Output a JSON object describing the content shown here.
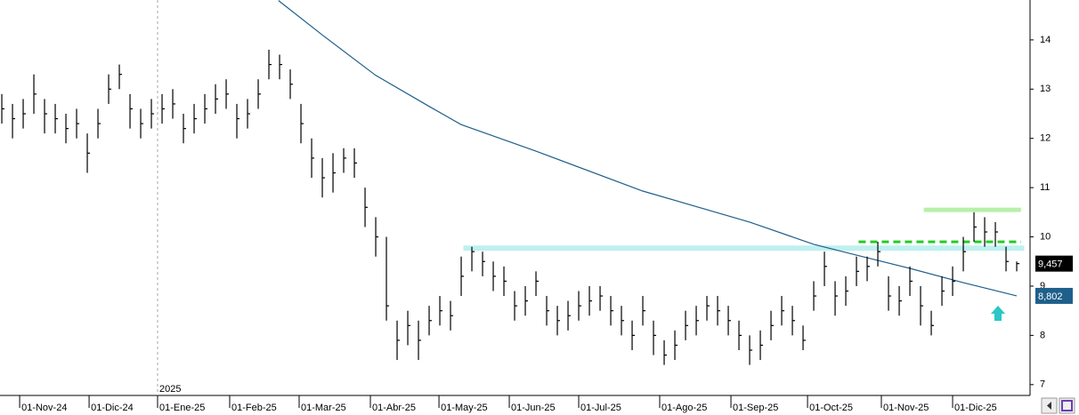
{
  "chart_data": {
    "type": "ohlc",
    "xlim": [
      -0.17,
      96.08
    ],
    "ylim": [
      6.78,
      14.81
    ],
    "yticks": [
      7,
      8,
      9,
      10,
      11,
      12,
      13,
      14
    ],
    "xticks": [
      {
        "value": 1.67,
        "label": "01-Nov-24"
      },
      {
        "value": 8.17,
        "label": "01-Dic-24"
      },
      {
        "value": 14.58,
        "label": "01-Ene-25"
      },
      {
        "value": 21.33,
        "label": "01-Feb-25"
      },
      {
        "value": 27.83,
        "label": "01-Mar-25"
      },
      {
        "value": 34.5,
        "label": "01-Abr-25"
      },
      {
        "value": 40.92,
        "label": "01-May-25"
      },
      {
        "value": 47.5,
        "label": "01-Jun-25"
      },
      {
        "value": 54,
        "label": "01-Jul-25"
      },
      {
        "value": 61.58,
        "label": "01-Ago-25"
      },
      {
        "value": 68.25,
        "label": "01-Sep-25"
      },
      {
        "value": 75.42,
        "label": "01-Oct-25"
      },
      {
        "value": 82.33,
        "label": "01-Nov-25"
      },
      {
        "value": 89,
        "label": "01-Dic-25"
      }
    ],
    "year_marker": {
      "value": 14.58,
      "label": "2025"
    },
    "bars": {
      "color": "#000000",
      "high": [
        12.9,
        12.7,
        12.8,
        13.3,
        12.8,
        12.7,
        12.5,
        12.6,
        12.1,
        12.6,
        13.3,
        13.5,
        12.9,
        12.6,
        12.8,
        12.9,
        13.0,
        12.5,
        12.7,
        12.9,
        13.1,
        13.2,
        12.7,
        12.8,
        13.2,
        13.8,
        13.7,
        13.4,
        12.7,
        12.0,
        11.6,
        11.7,
        11.8,
        11.8,
        11.0,
        10.4,
        10.0,
        8.3,
        8.5,
        8.3,
        8.6,
        8.8,
        8.7,
        9.6,
        9.8,
        9.7,
        9.5,
        9.4,
        8.9,
        9.0,
        9.3,
        8.8,
        8.6,
        8.7,
        8.9,
        9.0,
        9.0,
        8.8,
        8.6,
        8.3,
        8.8,
        8.3,
        7.9,
        8.1,
        8.5,
        8.6,
        8.8,
        8.8,
        8.6,
        8.3,
        8.0,
        8.1,
        8.5,
        8.8,
        8.6,
        8.2,
        9.1,
        9.7,
        9.1,
        9.2,
        9.6,
        9.6,
        9.9,
        9.2,
        9.0,
        9.4,
        9.0,
        8.5,
        9.2,
        9.4,
        10.0,
        10.5,
        10.4,
        10.3,
        9.8,
        9.5
      ],
      "low": [
        12.3,
        12.0,
        12.2,
        12.5,
        12.1,
        12.1,
        11.9,
        12.0,
        11.3,
        12.0,
        12.7,
        13.0,
        12.2,
        12.0,
        12.2,
        12.3,
        12.4,
        11.9,
        12.1,
        12.3,
        12.5,
        12.6,
        12.0,
        12.2,
        12.6,
        13.2,
        13.2,
        12.8,
        11.9,
        11.2,
        10.8,
        10.9,
        11.3,
        11.2,
        10.2,
        9.6,
        8.3,
        7.5,
        7.8,
        7.5,
        8.0,
        8.2,
        8.1,
        8.8,
        9.3,
        9.2,
        8.9,
        8.8,
        8.3,
        8.4,
        8.8,
        8.2,
        8.0,
        8.1,
        8.3,
        8.4,
        8.5,
        8.2,
        8.0,
        7.7,
        8.2,
        7.6,
        7.4,
        7.5,
        7.9,
        8.0,
        8.3,
        8.2,
        8.0,
        7.7,
        7.4,
        7.5,
        7.9,
        8.2,
        8.0,
        7.7,
        8.5,
        9.0,
        8.4,
        8.6,
        9.0,
        9.1,
        9.4,
        8.5,
        8.4,
        8.8,
        8.2,
        8.0,
        8.6,
        8.8,
        9.3,
        9.9,
        9.8,
        9.8,
        9.3,
        9.3
      ],
      "close": [
        12.6,
        12.4,
        12.5,
        12.9,
        12.5,
        12.4,
        12.2,
        12.3,
        11.7,
        12.3,
        13.0,
        13.3,
        12.6,
        12.3,
        12.5,
        12.6,
        12.7,
        12.2,
        12.4,
        12.6,
        12.8,
        12.9,
        12.4,
        12.5,
        12.9,
        13.5,
        13.5,
        13.1,
        12.3,
        11.6,
        11.2,
        11.3,
        11.6,
        11.5,
        10.6,
        10.0,
        8.6,
        7.9,
        8.2,
        7.9,
        8.3,
        8.5,
        8.4,
        9.2,
        9.7,
        9.5,
        9.2,
        9.1,
        8.6,
        8.7,
        9.1,
        8.5,
        8.3,
        8.4,
        8.6,
        8.7,
        8.8,
        8.5,
        8.3,
        8.0,
        8.5,
        8.0,
        7.6,
        7.8,
        8.2,
        8.3,
        8.6,
        8.5,
        8.3,
        8.0,
        7.7,
        7.8,
        8.2,
        8.5,
        8.3,
        7.9,
        8.8,
        9.4,
        8.8,
        8.9,
        9.3,
        9.4,
        9.7,
        8.8,
        8.7,
        9.1,
        8.6,
        8.2,
        8.9,
        9.1,
        9.7,
        10.2,
        10.1,
        10.1,
        9.5,
        9.457
      ],
      "last_label": "9,457",
      "label_color": "#000000"
    },
    "moving_average": {
      "color": "#1f5f8b",
      "x": [
        25.9,
        30,
        35,
        40,
        43,
        50,
        60,
        70,
        76,
        80,
        85,
        90,
        95
      ],
      "values": [
        14.8,
        14.1,
        13.28,
        12.65,
        12.28,
        11.74,
        10.93,
        10.3,
        9.85,
        9.63,
        9.36,
        9.07,
        8.802
      ],
      "last_label": "8,802",
      "label_color": "#1f5f8b"
    },
    "levels": [
      {
        "value": 9.77,
        "from": 43.2,
        "to": 95.7,
        "color": "#bff0f0",
        "width": 6,
        "dashed": false
      },
      {
        "value": 9.9,
        "from": 80.2,
        "to": 95.4,
        "color": "#22cc22",
        "width": 3,
        "dashed": true
      },
      {
        "value": 10.55,
        "from": 86.3,
        "to": 95.4,
        "color": "#b7f0a8",
        "width": 5,
        "dashed": false
      }
    ]
  }
}
